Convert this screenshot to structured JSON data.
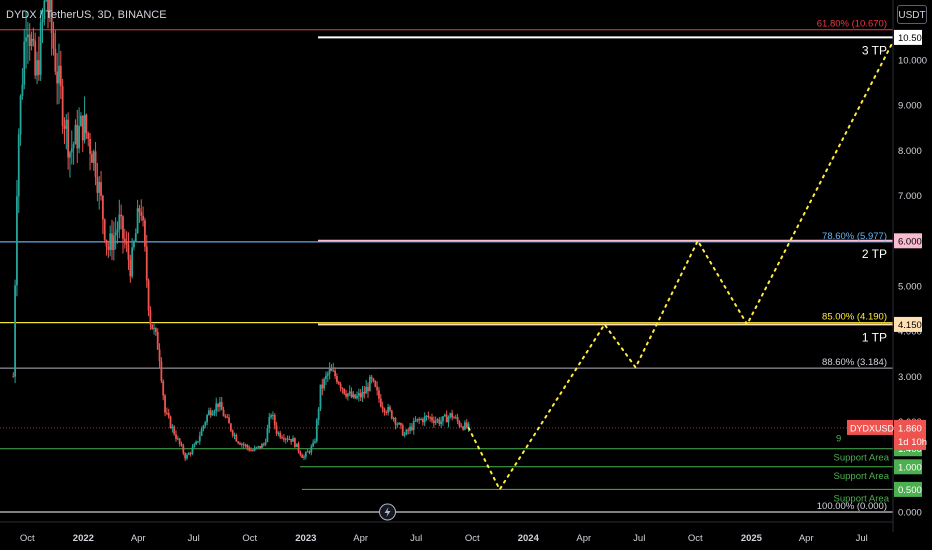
{
  "header": {
    "title": "DYDX / TetherUS, 3D, BINANCE"
  },
  "unit_button": "USDT",
  "colors": {
    "up": "#26a69a",
    "down": "#ef5350",
    "background": "#000000",
    "axis_text": "#d1d4dc",
    "path": "#ffeb3b",
    "support": "#4caf50",
    "fib_618": "#f23645",
    "fib_786": "#64b5f6",
    "fib_85": "#ffeb3b",
    "tp_line": "#ffffff",
    "tp_6": "#f8bbd0",
    "tp_415": "#ffe0b2"
  },
  "chart_data": {
    "type": "candlestick",
    "title": "DYDX / TetherUS, 3D, BINANCE",
    "ylim": [
      0,
      11.1
    ],
    "y_ticks": [
      "0.000",
      "1.000",
      "2.000",
      "3.000",
      "4.000",
      "5.000",
      "6.000",
      "7.000",
      "8.000",
      "9.000",
      "10.000"
    ],
    "x_ticks": [
      {
        "label": "Oct",
        "date": "2021-10-01"
      },
      {
        "label": "2022",
        "date": "2022-01-01"
      },
      {
        "label": "Apr",
        "date": "2022-04-01"
      },
      {
        "label": "Jul",
        "date": "2022-07-01"
      },
      {
        "label": "Oct",
        "date": "2022-10-01"
      },
      {
        "label": "2023",
        "date": "2023-01-01"
      },
      {
        "label": "Apr",
        "date": "2023-04-01"
      },
      {
        "label": "Jul",
        "date": "2023-07-01"
      },
      {
        "label": "Oct",
        "date": "2023-10-01"
      },
      {
        "label": "2024",
        "date": "2024-01-01"
      },
      {
        "label": "Apr",
        "date": "2024-04-01"
      },
      {
        "label": "Jul",
        "date": "2024-07-01"
      },
      {
        "label": "Oct",
        "date": "2024-10-01"
      },
      {
        "label": "2025",
        "date": "2025-01-01"
      },
      {
        "label": "Apr",
        "date": "2025-04-01"
      },
      {
        "label": "Jul",
        "date": "2025-07-01"
      }
    ],
    "x_range": [
      "2021-09-01",
      "2025-09-10"
    ],
    "price_path": [
      [
        "2021-09-08",
        3.0
      ],
      [
        "2021-09-15",
        8.0
      ],
      [
        "2021-09-30",
        11.2
      ],
      [
        "2021-10-15",
        9.5
      ],
      [
        "2021-11-01",
        11.5
      ],
      [
        "2021-11-20",
        9.6
      ],
      [
        "2021-12-10",
        8.0
      ],
      [
        "2022-01-01",
        8.6
      ],
      [
        "2022-01-20",
        7.8
      ],
      [
        "2022-02-10",
        5.8
      ],
      [
        "2022-03-01",
        6.4
      ],
      [
        "2022-03-20",
        5.4
      ],
      [
        "2022-04-05",
        6.9
      ],
      [
        "2022-04-20",
        4.3
      ],
      [
        "2022-05-05",
        3.6
      ],
      [
        "2022-05-15",
        2.2
      ],
      [
        "2022-06-01",
        1.7
      ],
      [
        "2022-06-18",
        1.2
      ],
      [
        "2022-07-05",
        1.5
      ],
      [
        "2022-07-25",
        2.2
      ],
      [
        "2022-08-10",
        2.4
      ],
      [
        "2022-08-25",
        2.0
      ],
      [
        "2022-09-10",
        1.6
      ],
      [
        "2022-10-05",
        1.35
      ],
      [
        "2022-10-25",
        1.5
      ],
      [
        "2022-11-05",
        2.2
      ],
      [
        "2022-11-15",
        1.75
      ],
      [
        "2022-12-10",
        1.6
      ],
      [
        "2022-12-28",
        1.2
      ],
      [
        "2023-01-15",
        1.5
      ],
      [
        "2023-01-25",
        2.7
      ],
      [
        "2023-02-08",
        3.1
      ],
      [
        "2023-02-20",
        3.0
      ],
      [
        "2023-03-05",
        2.7
      ],
      [
        "2023-03-20",
        2.5
      ],
      [
        "2023-04-05",
        2.6
      ],
      [
        "2023-04-18",
        2.9
      ],
      [
        "2023-05-05",
        2.4
      ],
      [
        "2023-05-25",
        2.1
      ],
      [
        "2023-06-12",
        1.7
      ],
      [
        "2023-07-01",
        2.0
      ],
      [
        "2023-07-20",
        2.1
      ],
      [
        "2023-08-10",
        2.0
      ],
      [
        "2023-08-28",
        2.15
      ],
      [
        "2023-09-10",
        1.95
      ],
      [
        "2023-09-25",
        1.86
      ]
    ],
    "projection": {
      "name": "projected path",
      "points": [
        [
          "2023-09-25",
          1.86
        ],
        [
          "2023-11-15",
          0.5
        ],
        [
          "2024-05-05",
          4.15
        ],
        [
          "2024-06-25",
          3.2
        ],
        [
          "2024-10-05",
          6.0
        ],
        [
          "2024-12-25",
          4.15
        ],
        [
          "2025-08-25",
          10.5
        ]
      ]
    },
    "levels": [
      {
        "value": 10.67,
        "label": "61.80% (10.670)",
        "style": "fib_618"
      },
      {
        "value": 10.5,
        "axis_label": "10.500",
        "tag": "3 TP",
        "style": "tp_line"
      },
      {
        "value": 6.0,
        "axis_label": "6.000",
        "tag": "2 TP",
        "style": "tp_6"
      },
      {
        "value": 5.977,
        "label": "78.60% (5.977)",
        "style": "fib_786"
      },
      {
        "value": 4.19,
        "label": "85.00% (4.190)",
        "style": "fib_85"
      },
      {
        "value": 4.15,
        "axis_label": "4.150",
        "tag": "1 TP",
        "style": "tp_415"
      },
      {
        "value": 3.184,
        "label": "88.60% (3.184)",
        "style": "grey"
      },
      {
        "value": 1.4,
        "axis_label": "1.400",
        "tag": "Support Area",
        "style": "support"
      },
      {
        "value": 1.0,
        "axis_label": "1.000",
        "tag": "Support Area",
        "style": "support"
      },
      {
        "value": 0.5,
        "axis_label": "0.500",
        "tag": "Support Area",
        "style": "support"
      },
      {
        "value": 0.0,
        "label": "100.00% (0.000)",
        "style": "white"
      }
    ],
    "last_price": {
      "symbol": "DYDXUSDT",
      "value": "1.860",
      "countdown": "1d 10h"
    },
    "partial_label": "9"
  }
}
